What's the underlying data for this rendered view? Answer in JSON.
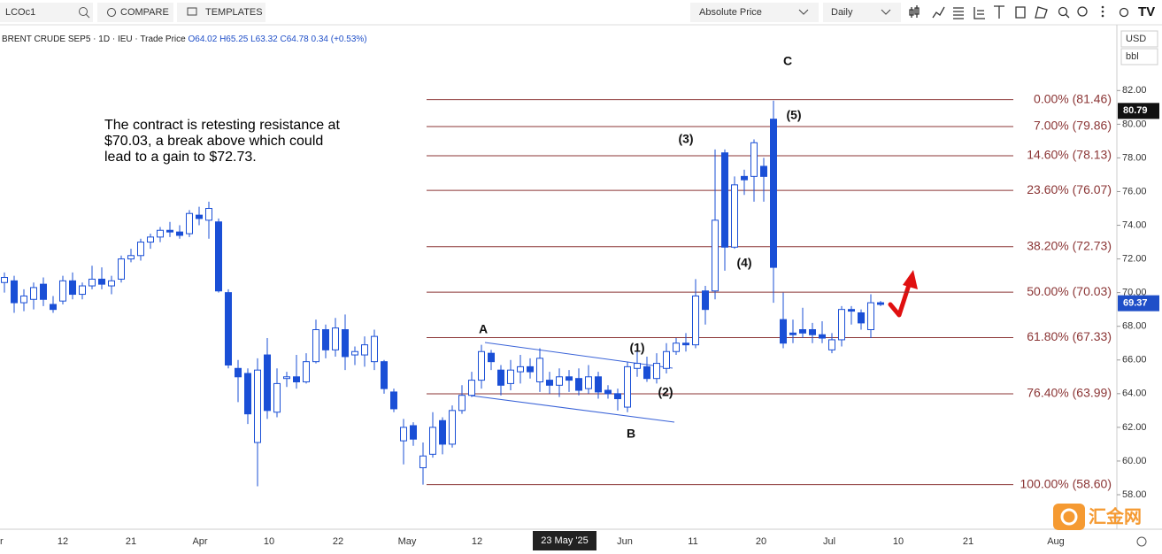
{
  "toolbar": {
    "symbol": "LCOc1",
    "compare": "COMPARE",
    "templates": "TEMPLATES",
    "price_mode": "Absolute Price",
    "interval": "Daily",
    "currency": "USD",
    "unit": "bbl"
  },
  "legend": {
    "name": "BRENT CRUDE SEP5",
    "interval": "1D",
    "exchange": "IEU",
    "price_type": "Trade Price",
    "open": "O64.02",
    "high": "H65.25",
    "low": "L63.32",
    "close": "C64.78",
    "change": "0.34 (+0.53%)"
  },
  "watermark": "汇金网",
  "chart_data": {
    "type": "candlestick",
    "annotation": [
      "The contract is retesting resistance at",
      "$70.03, a break above which could",
      "lead to a gain to $72.73."
    ],
    "waves": [
      "A",
      "B",
      "C",
      "(1)",
      "(2)",
      "(3)",
      "(4)",
      "(5)"
    ],
    "open": [
      70.6,
      70.7,
      69.4,
      69.6,
      70.5,
      69.3,
      69.5,
      70.7,
      69.9,
      70.4,
      70.8,
      70.4,
      70.8,
      72.0,
      72.2,
      73.0,
      73.3,
      73.7,
      73.6,
      73.5,
      74.6,
      74.3,
      74.2,
      70.0,
      65.5,
      65.2,
      61.1,
      66.3,
      62.9,
      64.9,
      65.0,
      64.7,
      65.9,
      67.8,
      66.6,
      67.8,
      66.3,
      66.3,
      65.9,
      65.9,
      64.1,
      61.2,
      62.1,
      59.6,
      60.4,
      62.4,
      61.0,
      63.0,
      63.9,
      64.8,
      66.4,
      65.4,
      64.6,
      65.3,
      65.6,
      64.7,
      64.8,
      64.5,
      65.0,
      64.9,
      64.3,
      65.0,
      64.2,
      64.0,
      63.2,
      65.5,
      65.6,
      64.9,
      65.5,
      66.5,
      67.0,
      66.9,
      70.1,
      70.1,
      78.3,
      72.7,
      76.9,
      76.9,
      77.5,
      80.3,
      68.4,
      67.6,
      67.8,
      67.8,
      67.5,
      66.6,
      67.2,
      69.0,
      68.8,
      67.8,
      69.4
    ],
    "high": [
      71.2,
      71.0,
      70.2,
      70.6,
      70.9,
      69.8,
      71.0,
      71.2,
      70.6,
      71.6,
      71.5,
      71.0,
      72.2,
      72.6,
      73.2,
      73.5,
      73.9,
      74.2,
      74.0,
      74.9,
      75.1,
      75.4,
      74.4,
      70.2,
      66.0,
      65.5,
      66.1,
      67.3,
      65.5,
      65.3,
      66.3,
      66.4,
      68.4,
      68.1,
      68.5,
      68.7,
      66.8,
      67.4,
      67.8,
      66.0,
      64.3,
      62.5,
      62.3,
      61.1,
      62.9,
      62.6,
      63.3,
      64.5,
      65.3,
      66.9,
      66.6,
      65.7,
      66.0,
      66.3,
      66.1,
      66.7,
      65.3,
      65.5,
      65.4,
      65.5,
      65.7,
      65.3,
      64.5,
      64.3,
      65.9,
      66.6,
      66.2,
      66.4,
      67.0,
      67.3,
      67.6,
      70.8,
      70.4,
      78.5,
      78.5,
      76.9,
      77.3,
      79.1,
      78.0,
      81.4,
      70.0,
      68.4,
      69.1,
      68.2,
      68.3,
      67.6,
      69.2,
      69.2,
      69.0,
      69.9,
      69.5
    ],
    "low": [
      70.0,
      68.8,
      68.9,
      69.0,
      69.2,
      68.8,
      69.3,
      69.6,
      69.6,
      70.2,
      70.2,
      69.9,
      70.6,
      71.8,
      71.9,
      72.6,
      73.0,
      73.3,
      73.2,
      73.3,
      74.0,
      73.2,
      70.0,
      65.5,
      63.5,
      62.2,
      58.5,
      62.5,
      62.6,
      64.4,
      64.3,
      64.6,
      65.8,
      66.1,
      66.2,
      65.4,
      65.7,
      65.6,
      65.4,
      64.0,
      62.9,
      59.8,
      60.9,
      58.6,
      60.2,
      60.4,
      60.8,
      62.8,
      63.8,
      64.3,
      65.4,
      63.9,
      64.2,
      64.6,
      64.9,
      64.1,
      64.0,
      63.8,
      64.1,
      63.9,
      64.0,
      63.7,
      63.7,
      63.0,
      62.9,
      65.0,
      64.7,
      64.6,
      65.2,
      66.3,
      66.5,
      66.7,
      68.1,
      69.6,
      71.3,
      72.6,
      75.8,
      75.4,
      75.4,
      69.4,
      66.7,
      67.0,
      67.3,
      67.0,
      67.0,
      66.4,
      66.8,
      68.1,
      67.8,
      67.3,
      69.2
    ],
    "close": [
      70.9,
      69.4,
      69.8,
      70.3,
      69.6,
      69.0,
      70.7,
      69.9,
      70.4,
      70.8,
      70.5,
      70.7,
      72.0,
      72.2,
      73.0,
      73.3,
      73.7,
      73.6,
      73.4,
      74.7,
      74.4,
      75.0,
      70.1,
      65.7,
      65.0,
      62.8,
      65.4,
      63.0,
      64.6,
      65.0,
      64.7,
      65.9,
      67.8,
      66.6,
      67.9,
      66.2,
      66.5,
      66.9,
      67.4,
      64.3,
      63.1,
      62.0,
      61.3,
      60.3,
      62.0,
      61.0,
      63.0,
      63.9,
      64.8,
      66.5,
      65.9,
      64.5,
      65.4,
      65.6,
      65.3,
      66.1,
      64.5,
      65.0,
      64.8,
      64.2,
      65.0,
      64.1,
      64.0,
      63.7,
      65.6,
      65.8,
      64.9,
      65.8,
      66.5,
      67.0,
      66.9,
      69.8,
      69.0,
      74.3,
      72.7,
      76.4,
      76.7,
      78.9,
      76.9,
      71.5,
      67.0,
      67.5,
      67.6,
      67.5,
      67.3,
      67.2,
      69.0,
      68.9,
      68.2,
      69.4,
      69.3
    ],
    "up_color": "#ffffff",
    "down_color": "#1a4fd6",
    "border_color": "#1a4fd6",
    "xticks": [
      "r",
      "12",
      "21",
      "Apr",
      "10",
      "22",
      "May",
      "12",
      "Jun",
      "11",
      "20",
      "Jul",
      "10",
      "21",
      "Aug"
    ],
    "crosshair_label": "23 May '25",
    "ylim": [
      55.95,
      85.8
    ],
    "yticks": [
      {
        "value": 58,
        "label": "58.00"
      },
      {
        "value": 60,
        "label": "60.00"
      },
      {
        "value": 62,
        "label": "62.00"
      },
      {
        "value": 64,
        "label": "64.00"
      },
      {
        "value": 66,
        "label": "66.00"
      },
      {
        "value": 68,
        "label": "68.00"
      },
      {
        "value": 70,
        "label": "70.00"
      },
      {
        "value": 72,
        "label": "72.00"
      },
      {
        "value": 74,
        "label": "74.00"
      },
      {
        "value": 76,
        "label": "76.00"
      },
      {
        "value": 78,
        "label": "78.00"
      },
      {
        "value": 80,
        "label": "80.00"
      },
      {
        "value": 82,
        "label": "82.00"
      }
    ],
    "grid": false,
    "fib_color": "#8b3535",
    "fib_levels": [
      {
        "value": 81.46,
        "label": "0.00% (81.46)"
      },
      {
        "value": 79.86,
        "label": "7.00% (79.86)"
      },
      {
        "value": 78.13,
        "label": "14.60% (78.13)"
      },
      {
        "value": 76.07,
        "label": "23.60% (76.07)"
      },
      {
        "value": 72.73,
        "label": "38.20% (72.73)"
      },
      {
        "value": 70.03,
        "label": "50.00% (70.03)"
      },
      {
        "value": 67.33,
        "label": "61.80% (67.33)"
      },
      {
        "value": 63.99,
        "label": "76.40% (63.99)"
      },
      {
        "value": 58.6,
        "label": "100.00% (58.60)"
      }
    ],
    "price_markers": [
      {
        "value": 80.79,
        "label": "80.79",
        "color": "#111111"
      },
      {
        "value": 69.37,
        "label": "69.37",
        "color": "#1f4fc8"
      }
    ]
  }
}
